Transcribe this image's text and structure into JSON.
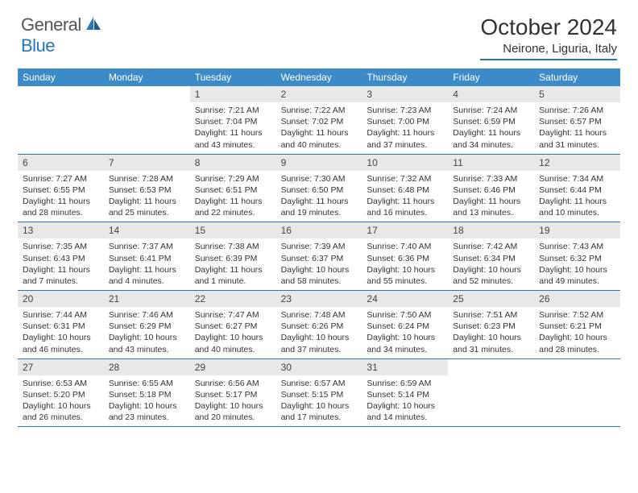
{
  "logo": {
    "general": "General",
    "blue": "Blue"
  },
  "title": "October 2024",
  "location": "Neirone, Liguria, Italy",
  "colors": {
    "header_bg": "#3b8bc9",
    "rule": "#2a74b8",
    "daynum_bg": "#e8e8e8",
    "text": "#333333",
    "logo_blue": "#2a74b8",
    "logo_gray": "#555555"
  },
  "day_names": [
    "Sunday",
    "Monday",
    "Tuesday",
    "Wednesday",
    "Thursday",
    "Friday",
    "Saturday"
  ],
  "weeks": [
    [
      {
        "n": "",
        "lines": []
      },
      {
        "n": "",
        "lines": []
      },
      {
        "n": "1",
        "lines": [
          "Sunrise: 7:21 AM",
          "Sunset: 7:04 PM",
          "Daylight: 11 hours",
          "and 43 minutes."
        ]
      },
      {
        "n": "2",
        "lines": [
          "Sunrise: 7:22 AM",
          "Sunset: 7:02 PM",
          "Daylight: 11 hours",
          "and 40 minutes."
        ]
      },
      {
        "n": "3",
        "lines": [
          "Sunrise: 7:23 AM",
          "Sunset: 7:00 PM",
          "Daylight: 11 hours",
          "and 37 minutes."
        ]
      },
      {
        "n": "4",
        "lines": [
          "Sunrise: 7:24 AM",
          "Sunset: 6:59 PM",
          "Daylight: 11 hours",
          "and 34 minutes."
        ]
      },
      {
        "n": "5",
        "lines": [
          "Sunrise: 7:26 AM",
          "Sunset: 6:57 PM",
          "Daylight: 11 hours",
          "and 31 minutes."
        ]
      }
    ],
    [
      {
        "n": "6",
        "lines": [
          "Sunrise: 7:27 AM",
          "Sunset: 6:55 PM",
          "Daylight: 11 hours",
          "and 28 minutes."
        ]
      },
      {
        "n": "7",
        "lines": [
          "Sunrise: 7:28 AM",
          "Sunset: 6:53 PM",
          "Daylight: 11 hours",
          "and 25 minutes."
        ]
      },
      {
        "n": "8",
        "lines": [
          "Sunrise: 7:29 AM",
          "Sunset: 6:51 PM",
          "Daylight: 11 hours",
          "and 22 minutes."
        ]
      },
      {
        "n": "9",
        "lines": [
          "Sunrise: 7:30 AM",
          "Sunset: 6:50 PM",
          "Daylight: 11 hours",
          "and 19 minutes."
        ]
      },
      {
        "n": "10",
        "lines": [
          "Sunrise: 7:32 AM",
          "Sunset: 6:48 PM",
          "Daylight: 11 hours",
          "and 16 minutes."
        ]
      },
      {
        "n": "11",
        "lines": [
          "Sunrise: 7:33 AM",
          "Sunset: 6:46 PM",
          "Daylight: 11 hours",
          "and 13 minutes."
        ]
      },
      {
        "n": "12",
        "lines": [
          "Sunrise: 7:34 AM",
          "Sunset: 6:44 PM",
          "Daylight: 11 hours",
          "and 10 minutes."
        ]
      }
    ],
    [
      {
        "n": "13",
        "lines": [
          "Sunrise: 7:35 AM",
          "Sunset: 6:43 PM",
          "Daylight: 11 hours",
          "and 7 minutes."
        ]
      },
      {
        "n": "14",
        "lines": [
          "Sunrise: 7:37 AM",
          "Sunset: 6:41 PM",
          "Daylight: 11 hours",
          "and 4 minutes."
        ]
      },
      {
        "n": "15",
        "lines": [
          "Sunrise: 7:38 AM",
          "Sunset: 6:39 PM",
          "Daylight: 11 hours",
          "and 1 minute."
        ]
      },
      {
        "n": "16",
        "lines": [
          "Sunrise: 7:39 AM",
          "Sunset: 6:37 PM",
          "Daylight: 10 hours",
          "and 58 minutes."
        ]
      },
      {
        "n": "17",
        "lines": [
          "Sunrise: 7:40 AM",
          "Sunset: 6:36 PM",
          "Daylight: 10 hours",
          "and 55 minutes."
        ]
      },
      {
        "n": "18",
        "lines": [
          "Sunrise: 7:42 AM",
          "Sunset: 6:34 PM",
          "Daylight: 10 hours",
          "and 52 minutes."
        ]
      },
      {
        "n": "19",
        "lines": [
          "Sunrise: 7:43 AM",
          "Sunset: 6:32 PM",
          "Daylight: 10 hours",
          "and 49 minutes."
        ]
      }
    ],
    [
      {
        "n": "20",
        "lines": [
          "Sunrise: 7:44 AM",
          "Sunset: 6:31 PM",
          "Daylight: 10 hours",
          "and 46 minutes."
        ]
      },
      {
        "n": "21",
        "lines": [
          "Sunrise: 7:46 AM",
          "Sunset: 6:29 PM",
          "Daylight: 10 hours",
          "and 43 minutes."
        ]
      },
      {
        "n": "22",
        "lines": [
          "Sunrise: 7:47 AM",
          "Sunset: 6:27 PM",
          "Daylight: 10 hours",
          "and 40 minutes."
        ]
      },
      {
        "n": "23",
        "lines": [
          "Sunrise: 7:48 AM",
          "Sunset: 6:26 PM",
          "Daylight: 10 hours",
          "and 37 minutes."
        ]
      },
      {
        "n": "24",
        "lines": [
          "Sunrise: 7:50 AM",
          "Sunset: 6:24 PM",
          "Daylight: 10 hours",
          "and 34 minutes."
        ]
      },
      {
        "n": "25",
        "lines": [
          "Sunrise: 7:51 AM",
          "Sunset: 6:23 PM",
          "Daylight: 10 hours",
          "and 31 minutes."
        ]
      },
      {
        "n": "26",
        "lines": [
          "Sunrise: 7:52 AM",
          "Sunset: 6:21 PM",
          "Daylight: 10 hours",
          "and 28 minutes."
        ]
      }
    ],
    [
      {
        "n": "27",
        "lines": [
          "Sunrise: 6:53 AM",
          "Sunset: 5:20 PM",
          "Daylight: 10 hours",
          "and 26 minutes."
        ]
      },
      {
        "n": "28",
        "lines": [
          "Sunrise: 6:55 AM",
          "Sunset: 5:18 PM",
          "Daylight: 10 hours",
          "and 23 minutes."
        ]
      },
      {
        "n": "29",
        "lines": [
          "Sunrise: 6:56 AM",
          "Sunset: 5:17 PM",
          "Daylight: 10 hours",
          "and 20 minutes."
        ]
      },
      {
        "n": "30",
        "lines": [
          "Sunrise: 6:57 AM",
          "Sunset: 5:15 PM",
          "Daylight: 10 hours",
          "and 17 minutes."
        ]
      },
      {
        "n": "31",
        "lines": [
          "Sunrise: 6:59 AM",
          "Sunset: 5:14 PM",
          "Daylight: 10 hours",
          "and 14 minutes."
        ]
      },
      {
        "n": "",
        "lines": []
      },
      {
        "n": "",
        "lines": []
      }
    ]
  ]
}
